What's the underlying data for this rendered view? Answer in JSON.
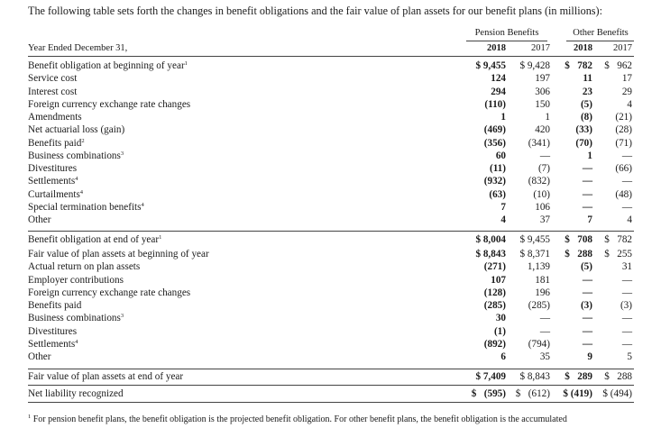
{
  "intro": "The following table sets forth the changes in benefit obligations and the fair value of plan assets for our benefit plans (in millions):",
  "headers": {
    "pension": "Pension Benefits",
    "other": "Other Benefits",
    "year_label": "Year Ended December 31,",
    "years": [
      "2018",
      "2017",
      "2018",
      "2017"
    ]
  },
  "rows": [
    {
      "label": "Benefit obligation at beginning of year",
      "sup": "1",
      "values": [
        "$ 9,455",
        "$ 9,428",
        "$   782",
        "$   962"
      ]
    },
    {
      "label": "Service cost",
      "sup": "",
      "values": [
        "124",
        "197",
        "11",
        "17"
      ]
    },
    {
      "label": "Interest cost",
      "sup": "",
      "values": [
        "294",
        "306",
        "23",
        "29"
      ]
    },
    {
      "label": "Foreign currency exchange rate changes",
      "sup": "",
      "values": [
        "(110)",
        "150",
        "(5)",
        "4"
      ]
    },
    {
      "label": "Amendments",
      "sup": "",
      "values": [
        "1",
        "1",
        "(8)",
        "(21)"
      ]
    },
    {
      "label": "Net actuarial loss (gain)",
      "sup": "",
      "values": [
        "(469)",
        "420",
        "(33)",
        "(28)"
      ]
    },
    {
      "label": "Benefits paid",
      "sup": "2",
      "values": [
        "(356)",
        "(341)",
        "(70)",
        "(71)"
      ]
    },
    {
      "label": "Business combinations",
      "sup": "3",
      "values": [
        "60",
        "—",
        "1",
        "—"
      ]
    },
    {
      "label": "Divestitures",
      "sup": "",
      "values": [
        "(11)",
        "(7)",
        "—",
        "(66)"
      ]
    },
    {
      "label": "Settlements",
      "sup": "4",
      "values": [
        "(932)",
        "(832)",
        "—",
        "—"
      ]
    },
    {
      "label": "Curtailments",
      "sup": "4",
      "values": [
        "(63)",
        "(10)",
        "—",
        "(48)"
      ]
    },
    {
      "label": "Special termination benefits",
      "sup": "4",
      "values": [
        "7",
        "106",
        "—",
        "—"
      ]
    },
    {
      "label": "Other",
      "sup": "",
      "values": [
        "4",
        "37",
        "7",
        "4"
      ]
    },
    {
      "label": "Benefit obligation at end of year",
      "sup": "1",
      "values": [
        "$ 8,004",
        "$ 9,455",
        "$   708",
        "$   782"
      ]
    },
    {
      "label": "Fair value of plan assets at beginning of year",
      "sup": "",
      "values": [
        "$ 8,843",
        "$ 8,371",
        "$   288",
        "$   255"
      ]
    },
    {
      "label": "Actual return on plan assets",
      "sup": "",
      "values": [
        "(271)",
        "1,139",
        "(5)",
        "31"
      ]
    },
    {
      "label": "Employer contributions",
      "sup": "",
      "values": [
        "107",
        "181",
        "—",
        "—"
      ]
    },
    {
      "label": "Foreign currency exchange rate changes",
      "sup": "",
      "values": [
        "(128)",
        "196",
        "—",
        "—"
      ]
    },
    {
      "label": "Benefits paid",
      "sup": "",
      "values": [
        "(285)",
        "(285)",
        "(3)",
        "(3)"
      ]
    },
    {
      "label": "Business combinations",
      "sup": "3",
      "values": [
        "30",
        "—",
        "—",
        "—"
      ]
    },
    {
      "label": "Divestitures",
      "sup": "",
      "values": [
        "(1)",
        "—",
        "—",
        "—"
      ]
    },
    {
      "label": "Settlements",
      "sup": "4",
      "values": [
        "(892)",
        "(794)",
        "—",
        "—"
      ]
    },
    {
      "label": "Other",
      "sup": "",
      "values": [
        "6",
        "35",
        "9",
        "5"
      ]
    },
    {
      "label": "Fair value of plan assets at end of year",
      "sup": "",
      "values": [
        "$ 7,409",
        "$ 8,843",
        "$   289",
        "$   288"
      ]
    },
    {
      "label": "Net liability recognized",
      "sup": "",
      "values": [
        "$   (595)",
        "$   (612)",
        "$ (419)",
        "$ (494)"
      ]
    }
  ],
  "footnote_marker": "1",
  "footnote": "For pension benefit plans, the benefit obligation is the projected benefit obligation. For other benefit plans, the benefit obligation is the accumulated"
}
